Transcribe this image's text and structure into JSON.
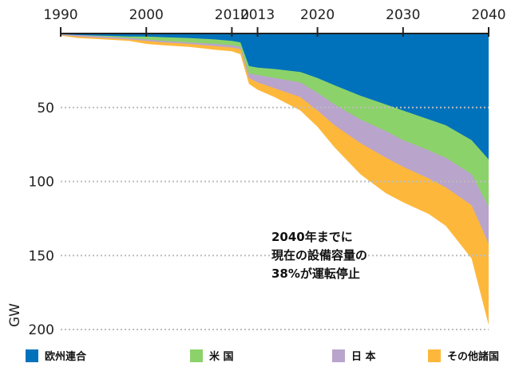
{
  "chart_data": {
    "type": "area",
    "x_ticks": [
      "1990",
      "2000",
      "2010",
      "2013",
      "2020",
      "2030",
      "2040"
    ],
    "x_range": [
      1990,
      2040
    ],
    "ylim": [
      0,
      200
    ],
    "y_inverted": true,
    "y_ticks": [
      50,
      100,
      150,
      200
    ],
    "ylabel": "GW",
    "x": [
      1990,
      1992,
      1995,
      1998,
      2000,
      2002,
      2005,
      2008,
      2010,
      2011,
      2012,
      2013,
      2015,
      2018,
      2020,
      2022,
      2025,
      2028,
      2030,
      2033,
      2035,
      2038,
      2040
    ],
    "series": [
      {
        "name": "欧州連合",
        "color": "#0072BC",
        "values": [
          0.5,
          1,
          1.5,
          2,
          2,
          2.5,
          3,
          4,
          5,
          6,
          22,
          23,
          24,
          26,
          30,
          35,
          42,
          48,
          52,
          58,
          62,
          72,
          85
        ]
      },
      {
        "name": "米 国",
        "color": "#8CD26A",
        "values": [
          0.5,
          1,
          2,
          3,
          4,
          5,
          6,
          7,
          8,
          9,
          27,
          28,
          30,
          33,
          40,
          48,
          58,
          66,
          72,
          79,
          84,
          95,
          117
        ]
      },
      {
        "name": "日 本",
        "color": "#B9A4CC",
        "values": [
          1,
          2,
          3,
          4,
          5,
          6,
          7,
          8.5,
          9.5,
          10.5,
          30,
          33,
          37,
          43,
          52,
          62,
          74,
          84,
          90,
          98,
          104,
          116,
          142
        ]
      },
      {
        "name": "その他諸国",
        "color": "#FDB83C",
        "values": [
          1.5,
          3,
          4,
          5,
          7,
          8,
          9,
          11,
          12,
          14,
          34,
          38,
          43,
          52,
          63,
          77,
          95,
          108,
          114,
          122,
          130,
          152,
          197
        ]
      }
    ],
    "annotation": [
      "2040年までに",
      "現在の設備容量の",
      "38%が運転停止"
    ],
    "legend_position": "bottom"
  }
}
